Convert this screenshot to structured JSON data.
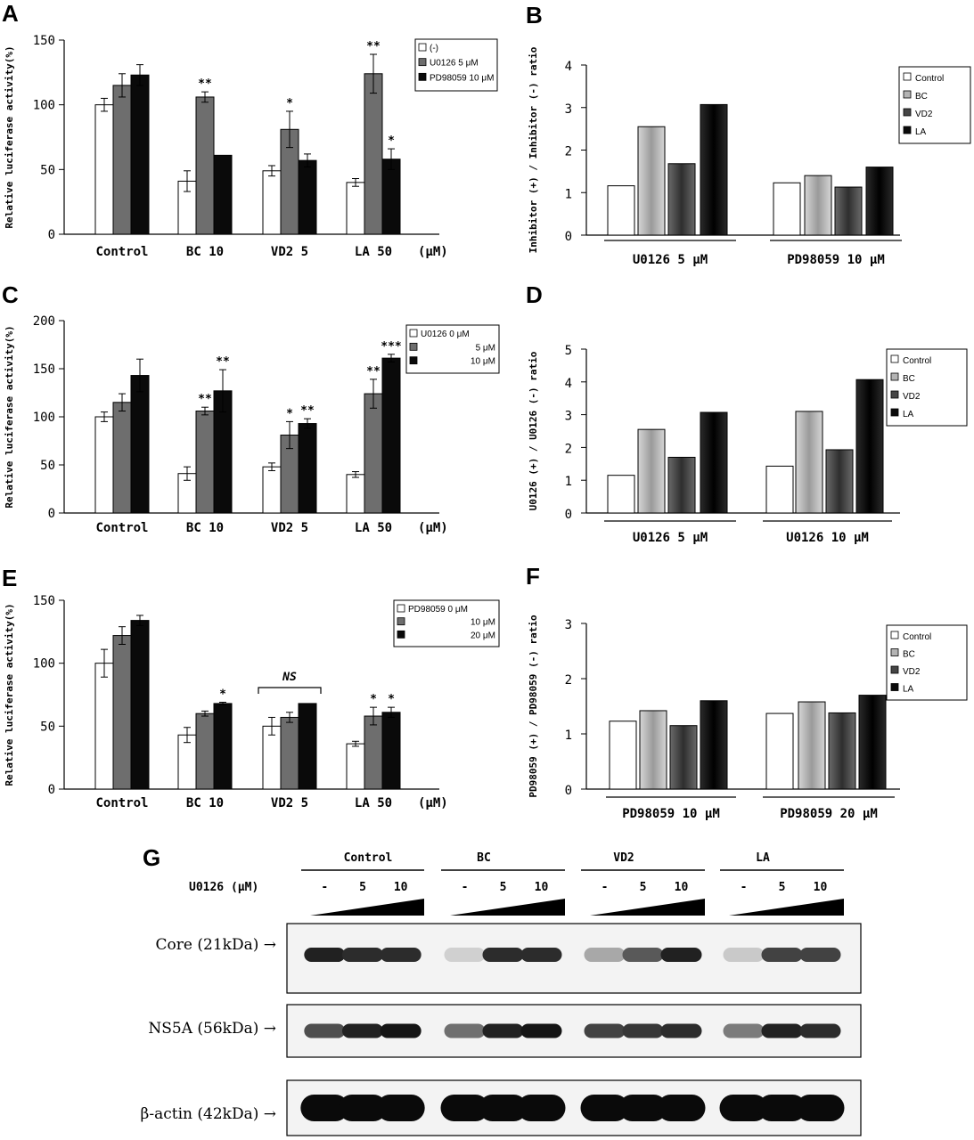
{
  "chart_data": [
    {
      "panel": "A",
      "type": "bar",
      "ylabel": "Relative luciferase activity(%)",
      "ylim": [
        0,
        150
      ],
      "yticks": [
        0,
        50,
        100,
        150
      ],
      "categories": [
        "Control",
        "BC 10",
        "VD2 5",
        "LA 50"
      ],
      "unit_label": "(μM)",
      "series": [
        {
          "name": "(-)",
          "color": "#ffffff",
          "values": [
            100,
            41,
            49,
            40
          ],
          "errors": [
            5,
            8,
            4,
            3
          ]
        },
        {
          "name": "U0126      5 μM",
          "color": "#6e6e6e",
          "values": [
            115,
            106,
            81,
            124
          ],
          "errors": [
            9,
            4,
            14,
            15
          ]
        },
        {
          "name": "PD98059 10 μM",
          "color": "#0a0a0a",
          "values": [
            123,
            61,
            57,
            58
          ],
          "errors": [
            8,
            0,
            5,
            8
          ]
        }
      ],
      "stars": [
        [
          "",
          "",
          ""
        ],
        [
          "",
          "**",
          ""
        ],
        [
          "",
          "*",
          ""
        ],
        [
          "",
          "**",
          "*"
        ]
      ]
    },
    {
      "panel": "B",
      "type": "bar",
      "ylabel": "Inhibitor (+) / Inhibitor (-) ratio",
      "ylim": [
        0,
        4
      ],
      "yticks": [
        0,
        1,
        2,
        3,
        4
      ],
      "groups": [
        "U0126 5 μM",
        "PD98059 10 μM"
      ],
      "series": [
        {
          "name": "Control",
          "color": "#ffffff",
          "values": [
            1.16,
            1.23
          ]
        },
        {
          "name": "BC",
          "color": "#b4b4b4",
          "values": [
            2.55,
            1.4
          ]
        },
        {
          "name": "VD2",
          "color": "#454545",
          "values": [
            1.68,
            1.13
          ]
        },
        {
          "name": "LA",
          "color": "#0a0a0a",
          "values": [
            3.07,
            1.6
          ]
        }
      ]
    },
    {
      "panel": "C",
      "type": "bar",
      "ylabel": "Relative luciferase activity(%)",
      "ylim": [
        0,
        200
      ],
      "yticks": [
        0,
        50,
        100,
        150,
        200
      ],
      "categories": [
        "Control",
        "BC 10",
        "VD2 5",
        "LA 50"
      ],
      "unit_label": "(μM)",
      "series": [
        {
          "name": "U0126    0 μM",
          "color": "#ffffff",
          "values": [
            100,
            41,
            48,
            40
          ],
          "errors": [
            5,
            7,
            4,
            3
          ]
        },
        {
          "name": "5 μM",
          "color": "#6e6e6e",
          "values": [
            115,
            106,
            81,
            124
          ],
          "errors": [
            9,
            4,
            14,
            15
          ]
        },
        {
          "name": "10 μM",
          "color": "#0a0a0a",
          "values": [
            143,
            127,
            93,
            161
          ],
          "errors": [
            17,
            22,
            5,
            4
          ]
        }
      ],
      "stars": [
        [
          "",
          "",
          ""
        ],
        [
          "",
          "**",
          "**"
        ],
        [
          "",
          "*",
          "**"
        ],
        [
          "",
          "**",
          "***"
        ]
      ]
    },
    {
      "panel": "D",
      "type": "bar",
      "ylabel": "U0126 (+) / U0126 (-) ratio",
      "ylim": [
        0,
        5
      ],
      "yticks": [
        0,
        1,
        2,
        3,
        4,
        5
      ],
      "groups": [
        "U0126 5 μM",
        "U0126 10 μM"
      ],
      "series": [
        {
          "name": "Control",
          "color": "#ffffff",
          "values": [
            1.15,
            1.43
          ]
        },
        {
          "name": "BC",
          "color": "#b4b4b4",
          "values": [
            2.55,
            3.1
          ]
        },
        {
          "name": "VD2",
          "color": "#454545",
          "values": [
            1.7,
            1.93
          ]
        },
        {
          "name": "LA",
          "color": "#0a0a0a",
          "values": [
            3.07,
            4.07
          ]
        }
      ]
    },
    {
      "panel": "E",
      "type": "bar",
      "ylabel": "Relative luciferase activity(%)",
      "ylim": [
        0,
        150
      ],
      "yticks": [
        0,
        50,
        100,
        150
      ],
      "categories": [
        "Control",
        "BC 10",
        "VD2 5",
        "LA 50"
      ],
      "unit_label": "(μM)",
      "series": [
        {
          "name": "PD98059    0 μM",
          "color": "#ffffff",
          "values": [
            100,
            43,
            50,
            36
          ],
          "errors": [
            11,
            6,
            7,
            2
          ]
        },
        {
          "name": "10 μM",
          "color": "#6e6e6e",
          "values": [
            122,
            60,
            57,
            58
          ],
          "errors": [
            7,
            2,
            4,
            7
          ]
        },
        {
          "name": "20 μM",
          "color": "#0a0a0a",
          "values": [
            134,
            68,
            68,
            61
          ],
          "errors": [
            4,
            1,
            0,
            4
          ]
        }
      ],
      "stars": [
        [
          "",
          "",
          ""
        ],
        [
          "",
          "",
          "*"
        ],
        [
          "",
          "",
          ""
        ],
        [
          "",
          "*",
          "*"
        ]
      ],
      "annotation": "NS"
    },
    {
      "panel": "F",
      "type": "bar",
      "ylabel": "PD98059 (+) / PD98059 (-) ratio",
      "ylim": [
        0,
        3
      ],
      "yticks": [
        0,
        1,
        2,
        3
      ],
      "groups": [
        "PD98059 10 μM",
        "PD98059 20 μM"
      ],
      "series": [
        {
          "name": "Control",
          "color": "#ffffff",
          "values": [
            1.23,
            1.37
          ]
        },
        {
          "name": "BC",
          "color": "#b4b4b4",
          "values": [
            1.42,
            1.58
          ]
        },
        {
          "name": "VD2",
          "color": "#454545",
          "values": [
            1.15,
            1.38
          ]
        },
        {
          "name": "LA",
          "color": "#0a0a0a",
          "values": [
            1.6,
            1.7
          ]
        }
      ]
    }
  ],
  "panel_labels": [
    "A",
    "B",
    "C",
    "D",
    "E",
    "F",
    "G"
  ],
  "blot": {
    "groups": [
      "Control",
      "BC",
      "VD2",
      "LA"
    ],
    "dose_label": "U0126 (μM)",
    "doses": [
      "-",
      "5",
      "10"
    ],
    "rows": [
      {
        "label": "Core (21kDa) →",
        "intensity": [
          0.9,
          0.85,
          0.85,
          0.12,
          0.85,
          0.85,
          0.3,
          0.65,
          0.9,
          0.15,
          0.75,
          0.75
        ]
      },
      {
        "label": "NS5A (56kDa) →",
        "intensity": [
          0.7,
          0.9,
          0.95,
          0.55,
          0.9,
          0.95,
          0.75,
          0.8,
          0.85,
          0.5,
          0.9,
          0.85
        ]
      },
      {
        "label": "β-actin (42kDa) →",
        "intensity": [
          1,
          1,
          1,
          1,
          1,
          1,
          1,
          1,
          1,
          1,
          1,
          1
        ]
      }
    ]
  }
}
